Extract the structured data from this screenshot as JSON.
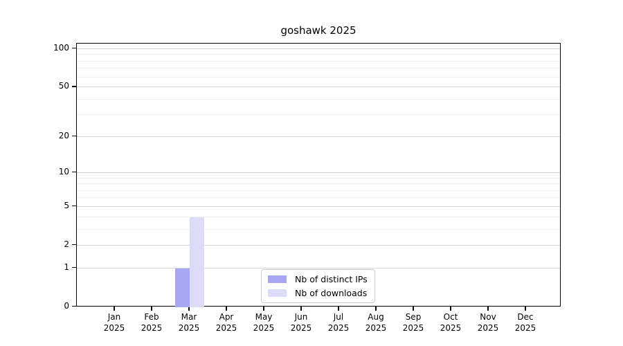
{
  "figure": {
    "background": "#ffffff"
  },
  "chart_data": {
    "type": "bar",
    "title": "goshawk 2025",
    "xlabel": "",
    "ylabel": "",
    "categories": [
      "Jan 2025",
      "Feb 2025",
      "Mar 2025",
      "Apr 2025",
      "May 2025",
      "Jun 2025",
      "Jul 2025",
      "Aug 2025",
      "Sep 2025",
      "Oct 2025",
      "Nov 2025",
      "Dec 2025"
    ],
    "series": [
      {
        "name": "Nb of distinct IPs",
        "color": "#a6a6f2",
        "values": [
          0,
          0,
          1,
          0,
          0,
          0,
          0,
          0,
          0,
          0,
          0,
          0
        ]
      },
      {
        "name": "Nb of downloads",
        "color": "#dcdcf8",
        "values": [
          0,
          0,
          4,
          0,
          0,
          0,
          0,
          0,
          0,
          0,
          0,
          0
        ]
      }
    ],
    "y_axis": {
      "scale": "log1p",
      "ticks": [
        0,
        1,
        2,
        5,
        10,
        20,
        50,
        100
      ],
      "minor_ticks": [
        3,
        4,
        6,
        7,
        8,
        9,
        30,
        40,
        60,
        70,
        80,
        90
      ],
      "range_max": 111
    },
    "grid": "horizontal",
    "legend": {
      "position": "inside-bottom-center",
      "entries": [
        "Nb of distinct IPs",
        "Nb of downloads"
      ]
    }
  },
  "colors": {
    "axis": "#000000",
    "grid_major": "#d6d6d6",
    "grid_minor": "#efefef",
    "legend_border": "#cccccc",
    "text": "#000000"
  }
}
